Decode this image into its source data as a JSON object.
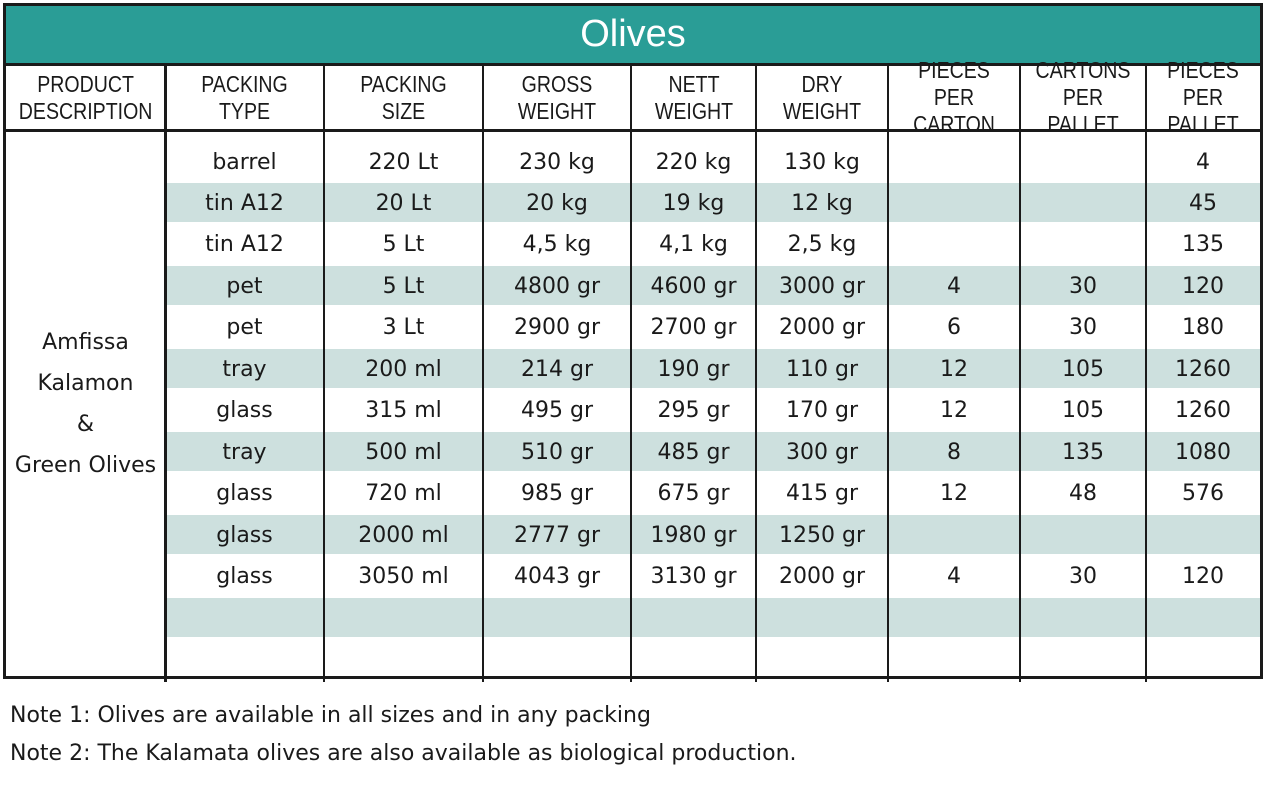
{
  "title": "Olives",
  "headers": [
    [
      "PRODUCT",
      "DESCRIPTION"
    ],
    [
      "PACKING TYPE"
    ],
    [
      "PACKING SIZE"
    ],
    [
      "GROSS",
      "WEIGHT"
    ],
    [
      "NETT",
      "WEIGHT"
    ],
    [
      "DRY",
      "WEIGHT"
    ],
    [
      "PIECES",
      "PER CARTON"
    ],
    [
      "CARTONS",
      "PER PALLET"
    ],
    [
      "PIECES",
      "PER PALLET"
    ]
  ],
  "product_description": [
    "Amfissa",
    "Kalamon",
    "&",
    "Green Olives"
  ],
  "rows": [
    [
      "barrel",
      "220 Lt",
      "230 kg",
      "220 kg",
      "130 kg",
      "",
      "",
      "4"
    ],
    [
      "tin A12",
      "20 Lt",
      "20 kg",
      "19 kg",
      "12 kg",
      "",
      "",
      "45"
    ],
    [
      "tin A12",
      "5 Lt",
      "4,5 kg",
      "4,1 kg",
      "2,5 kg",
      "",
      "",
      "135"
    ],
    [
      "pet",
      "5 Lt",
      "4800 gr",
      "4600 gr",
      "3000 gr",
      "4",
      "30",
      "120"
    ],
    [
      "pet",
      "3 Lt",
      "2900 gr",
      "2700 gr",
      "2000 gr",
      "6",
      "30",
      "180"
    ],
    [
      "tray",
      "200 ml",
      "214 gr",
      "190 gr",
      "110 gr",
      "12",
      "105",
      "1260"
    ],
    [
      "glass",
      "315 ml",
      "495 gr",
      "295 gr",
      "170 gr",
      "12",
      "105",
      "1260"
    ],
    [
      "tray",
      "500 ml",
      "510 gr",
      "485 gr",
      "300 gr",
      "8",
      "135",
      "1080"
    ],
    [
      "glass",
      "720 ml",
      "985 gr",
      "675 gr",
      "415 gr",
      "12",
      "48",
      "576"
    ],
    [
      "glass",
      "2000 ml",
      "2777 gr",
      "1980 gr",
      "1250 gr",
      "",
      "",
      ""
    ],
    [
      "glass",
      "3050 ml",
      "4043 gr",
      "3130 gr",
      "2000 gr",
      "4",
      "30",
      "120"
    ],
    [
      "",
      "",
      "",
      "",
      "",
      "",
      "",
      ""
    ],
    [
      "",
      "",
      "",
      "",
      "",
      "",
      "",
      ""
    ]
  ],
  "notes": [
    "Note 1: Olives are available in all sizes and in any packing",
    "Note 2: The Kalamata olives are also available as biological production."
  ],
  "colors": {
    "title_bg": "#2a9d96",
    "stripe": "#cde0de",
    "border": "#1a1a1a"
  }
}
